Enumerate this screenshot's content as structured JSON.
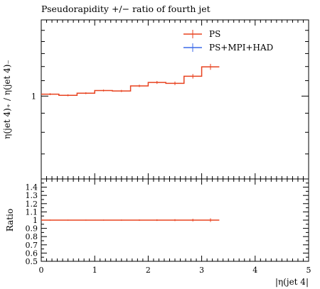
{
  "chart_data": [
    {
      "type": "line",
      "title": "Pseudorapidity +/− ratio of fourth jet",
      "ylabel": "η(jet 4)₊ / η(jet 4)₋",
      "xlabel": "",
      "xlim": [
        0,
        5
      ],
      "ylim_log": true,
      "ylim": [
        0.6,
        1.6
      ],
      "y_tick_labels": [
        "1"
      ],
      "legend": [
        "PS",
        "PS+MPI+HAD"
      ],
      "legend_position": "top-right",
      "grid": false,
      "bin_edges": [
        0,
        0.33,
        0.67,
        1.0,
        1.33,
        1.67,
        2.0,
        2.33,
        2.67,
        3.0,
        3.33
      ],
      "series": [
        {
          "name": "PS",
          "color": "#e8421f",
          "values": [
            1.012,
            1.005,
            1.018,
            1.035,
            1.032,
            1.065,
            1.088,
            1.082,
            1.13,
            1.198
          ],
          "errors": [
            0.006,
            0.006,
            0.006,
            0.006,
            0.007,
            0.008,
            0.01,
            0.012,
            0.016,
            0.022
          ]
        },
        {
          "name": "PS+MPI+HAD",
          "color": "#3b6ae8",
          "values": [],
          "errors": []
        }
      ]
    },
    {
      "type": "line",
      "title": "",
      "ylabel": "Ratio",
      "xlabel": "|η(jet 4|",
      "xlim": [
        0,
        5
      ],
      "ylim": [
        0.5,
        1.5
      ],
      "x_tick_labels": [
        "0",
        "1",
        "2",
        "3",
        "4",
        "5"
      ],
      "y_tick_labels": [
        "0.5",
        "0.6",
        "0.7",
        "0.8",
        "0.9",
        "1",
        "1.1",
        "1.2",
        "1.3",
        "1.4"
      ],
      "grid": false,
      "bin_edges": [
        0,
        0.33,
        0.67,
        1.0,
        1.33,
        1.67,
        2.0,
        2.33,
        2.67,
        3.0,
        3.33
      ],
      "series": [
        {
          "name": "PS",
          "color": "#e8421f",
          "values": [
            1,
            1,
            1,
            1,
            1,
            1,
            1,
            1,
            1,
            1
          ],
          "errors": [
            0.006,
            0.006,
            0.006,
            0.006,
            0.007,
            0.008,
            0.01,
            0.012,
            0.016,
            0.022
          ]
        }
      ]
    }
  ]
}
